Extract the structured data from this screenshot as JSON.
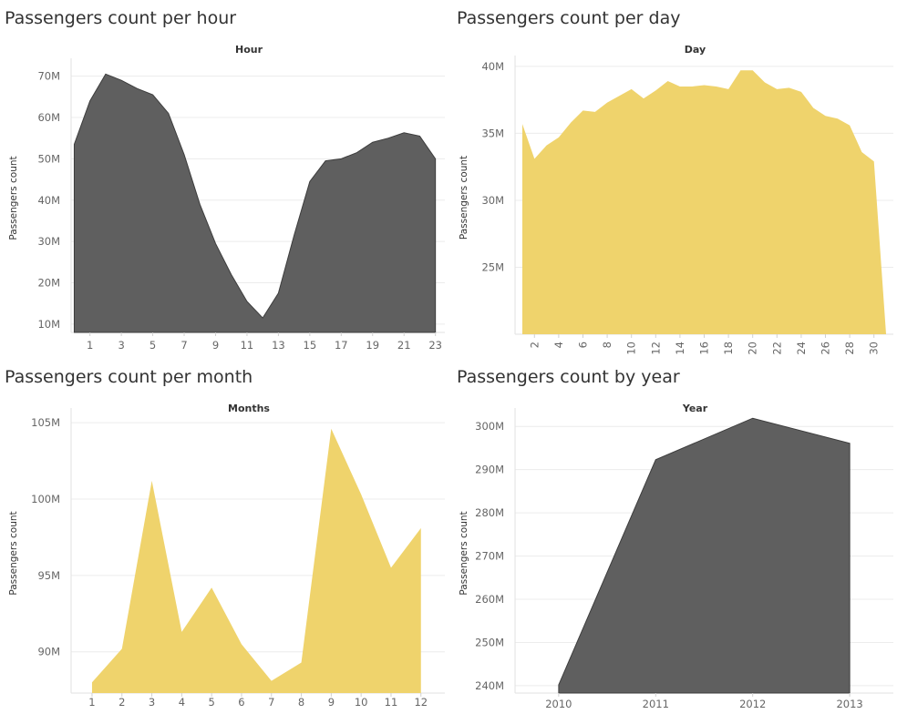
{
  "charts": [
    {
      "title": "Passengers count per hour",
      "chart_data": {
        "type": "area",
        "title": "Passengers count per hour",
        "xlabel": "Hour",
        "ylabel": "Passengers count",
        "x": [
          0,
          1,
          2,
          3,
          4,
          5,
          6,
          7,
          8,
          9,
          10,
          11,
          12,
          13,
          14,
          15,
          16,
          17,
          18,
          19,
          20,
          21,
          22,
          23
        ],
        "values": [
          53.5,
          64.0,
          70.5,
          69.0,
          67.0,
          65.5,
          61.0,
          51.0,
          39.0,
          29.5,
          22.0,
          15.5,
          11.5,
          17.5,
          31.5,
          44.5,
          49.5,
          50.0,
          51.5,
          54.0,
          55.0,
          56.3,
          55.5,
          50.0
        ],
        "x_ticks": [
          1,
          3,
          5,
          7,
          9,
          11,
          13,
          15,
          17,
          19,
          21,
          23
        ],
        "y_ticks": [
          10,
          20,
          30,
          40,
          50,
          60,
          70
        ],
        "y_tick_labels": [
          "10M",
          "20M",
          "30M",
          "40M",
          "50M",
          "60M",
          "70M"
        ],
        "ylim": [
          8,
          73
        ],
        "unit": "M",
        "color": "#5f5f5f"
      }
    },
    {
      "title": "Passengers count per day",
      "chart_data": {
        "type": "area",
        "title": "Passengers count per day",
        "xlabel": "Day",
        "ylabel": "Passengers count",
        "x": [
          1,
          2,
          3,
          4,
          5,
          6,
          7,
          8,
          9,
          10,
          11,
          12,
          13,
          14,
          15,
          16,
          17,
          18,
          19,
          20,
          21,
          22,
          23,
          24,
          25,
          26,
          27,
          28,
          29,
          30,
          31
        ],
        "values": [
          35.7,
          33.1,
          34.1,
          34.7,
          35.8,
          36.7,
          36.6,
          37.3,
          37.8,
          38.3,
          37.6,
          38.2,
          38.9,
          38.5,
          38.5,
          38.6,
          38.5,
          38.3,
          39.7,
          39.7,
          38.8,
          38.3,
          38.4,
          38.1,
          36.9,
          36.3,
          36.1,
          35.6,
          33.6,
          32.9,
          20.0
        ],
        "x_ticks": [
          2,
          4,
          6,
          8,
          10,
          12,
          14,
          16,
          18,
          20,
          22,
          24,
          26,
          28,
          30
        ],
        "y_ticks": [
          25,
          30,
          35,
          40
        ],
        "y_tick_labels": [
          "25M",
          "30M",
          "35M",
          "40M"
        ],
        "ylim": [
          20,
          40.4
        ],
        "unit": "M",
        "color": "#efd36c"
      }
    },
    {
      "title": "Passengers count per month",
      "chart_data": {
        "type": "area",
        "title": "Passengers count per month",
        "xlabel": "Months",
        "ylabel": "Passengers count",
        "x": [
          1,
          2,
          3,
          4,
          5,
          6,
          7,
          8,
          9,
          10,
          11,
          12
        ],
        "values": [
          88.0,
          90.2,
          101.2,
          91.3,
          94.2,
          90.5,
          88.1,
          89.3,
          104.6,
          100.3,
          95.5,
          98.1
        ],
        "x_ticks": [
          1,
          2,
          3,
          4,
          5,
          6,
          7,
          8,
          9,
          10,
          11,
          12
        ],
        "y_ticks": [
          90,
          95,
          100,
          105
        ],
        "y_tick_labels": [
          "90M",
          "95M",
          "100M",
          "105M"
        ],
        "ylim": [
          87.3,
          105.6
        ],
        "unit": "M",
        "color": "#efd36c"
      }
    },
    {
      "title": "Passengers count by year",
      "chart_data": {
        "type": "area",
        "title": "Passengers count by year",
        "xlabel": "Year",
        "ylabel": "Passengers count",
        "x": [
          2010,
          2011,
          2012,
          2013
        ],
        "values": [
          240.2,
          292.3,
          301.9,
          296.1
        ],
        "x_ticks": [
          2010,
          2011,
          2012,
          2013
        ],
        "y_ticks": [
          240,
          250,
          260,
          270,
          280,
          290,
          300
        ],
        "y_tick_labels": [
          "240M",
          "250M",
          "260M",
          "270M",
          "280M",
          "290M",
          "300M"
        ],
        "ylim": [
          238.3,
          303
        ],
        "unit": "M",
        "color": "#5f5f5f"
      }
    }
  ]
}
